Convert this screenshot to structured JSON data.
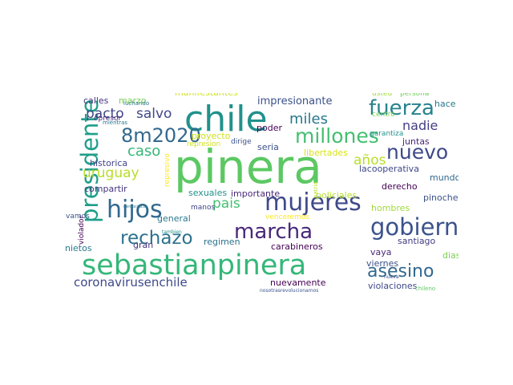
{
  "wordcloud": {
    "words": [
      {
        "text": "pinera",
        "color": "#5cc863"
      },
      {
        "text": "sebastianpinera",
        "color": "#35b779"
      },
      {
        "text": "chile",
        "color": "#21918c"
      },
      {
        "text": "mujeres",
        "color": "#3e4989"
      },
      {
        "text": "hijos",
        "color": "#31688e"
      },
      {
        "text": "presidente",
        "color": "#1f9e89"
      },
      {
        "text": "gobierno",
        "color": "#3b528b"
      },
      {
        "text": "marcha",
        "color": "#482878"
      },
      {
        "text": "fuerza",
        "color": "#26828e"
      },
      {
        "text": "millones",
        "color": "#44bf70"
      },
      {
        "text": "8m2020",
        "color": "#31688e"
      },
      {
        "text": "nuevo",
        "color": "#3e4989"
      },
      {
        "text": "rechazo",
        "color": "#2c728e"
      },
      {
        "text": "asesino",
        "color": "#31688e"
      },
      {
        "text": "coronavirusenchile",
        "color": "#3e4989"
      },
      {
        "text": "pais",
        "color": "#44bf70"
      },
      {
        "text": "miles",
        "color": "#2a788e"
      },
      {
        "text": "uruguay",
        "color": "#b8de29"
      },
      {
        "text": "pacto",
        "color": "#414487"
      },
      {
        "text": "salvo",
        "color": "#3e4989"
      },
      {
        "text": "caso",
        "color": "#35b779"
      },
      {
        "text": "años",
        "color": "#b8de29"
      },
      {
        "text": "nadie",
        "color": "#433e85"
      },
      {
        "text": "impresionante",
        "color": "#3b528b"
      },
      {
        "text": "manifestantes",
        "color": "#d0e11c"
      },
      {
        "text": "calles",
        "color": "#46337e"
      },
      {
        "text": "marzo",
        "color": "#7ad151"
      },
      {
        "text": "hace",
        "color": "#2a788e"
      },
      {
        "text": "proyecto",
        "color": "#d0e11c"
      },
      {
        "text": "poder",
        "color": "#440154"
      },
      {
        "text": "seria",
        "color": "#3b528b"
      },
      {
        "text": "juntas",
        "color": "#482878"
      },
      {
        "text": "historica",
        "color": "#414487"
      },
      {
        "text": "libertades",
        "color": "#d8e219"
      },
      {
        "text": "lacooperativa",
        "color": "#3e4989"
      },
      {
        "text": "compartir",
        "color": "#46337e"
      },
      {
        "text": "mundo",
        "color": "#31688e"
      },
      {
        "text": "importante",
        "color": "#482878"
      },
      {
        "text": "derecho",
        "color": "#440154"
      },
      {
        "text": "general",
        "color": "#2a788e"
      },
      {
        "text": "sexuales",
        "color": "#21918c"
      },
      {
        "text": "policiales",
        "color": "#b5de2b"
      },
      {
        "text": "pinochet",
        "color": "#3b528b"
      },
      {
        "text": "hombres",
        "color": "#a0da39"
      },
      {
        "text": "regimen",
        "color": "#2c728e"
      },
      {
        "text": "santiago",
        "color": "#433e85"
      },
      {
        "text": "vaya",
        "color": "#482878"
      },
      {
        "text": "nietos",
        "color": "#2a788e"
      },
      {
        "text": "carabineros",
        "color": "#440154"
      },
      {
        "text": "dias",
        "color": "#7ad151"
      },
      {
        "text": "gran",
        "color": "#46337e"
      },
      {
        "text": "viernes",
        "color": "#3b528b"
      },
      {
        "text": "nuevamente",
        "color": "#440154"
      },
      {
        "text": "violaciones",
        "color": "#3e4989"
      },
      {
        "text": "centro",
        "color": "#7ad151"
      },
      {
        "text": "garantiza",
        "color": "#21918c"
      },
      {
        "text": "represion",
        "color": "#d0e11c"
      },
      {
        "text": "dirige",
        "color": "#3b528b"
      },
      {
        "text": "usted",
        "color": "#a0da39"
      },
      {
        "text": "persona",
        "color": "#6ece58"
      },
      {
        "text": "vamos",
        "color": "#3b528b"
      },
      {
        "text": "manos",
        "color": "#414487"
      },
      {
        "text": "venceremos",
        "color": "#fde725"
      },
      {
        "text": "opresor",
        "color": "#482878"
      },
      {
        "text": "violador",
        "color": "#440154"
      },
      {
        "text": "represivo",
        "color": "#fde725"
      },
      {
        "text": "luchando",
        "color": "#2a788e"
      },
      {
        "text": "mientras",
        "color": "#2a788e"
      },
      {
        "text": "chileno",
        "color": "#5ec962"
      },
      {
        "text": "nueva",
        "color": "#3b528b"
      },
      {
        "text": "nosotrasrevolucionamos",
        "color": "#3b528b"
      },
      {
        "text": "patria",
        "color": "#b8de29"
      },
      {
        "text": "tambien",
        "color": "#21918c"
      },
      {
        "text": "democracia",
        "color": "#2a788e"
      }
    ]
  }
}
